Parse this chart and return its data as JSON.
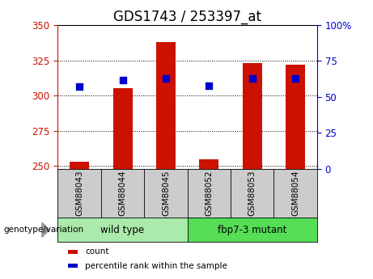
{
  "title": "GDS1743 / 253397_at",
  "samples": [
    "GSM88043",
    "GSM88044",
    "GSM88045",
    "GSM88052",
    "GSM88053",
    "GSM88054"
  ],
  "count_values": [
    253,
    305,
    338,
    255,
    323,
    322
  ],
  "percentile_values": [
    57,
    62,
    63,
    58,
    63,
    63
  ],
  "ylim_left": [
    248,
    350
  ],
  "ylim_right": [
    0,
    100
  ],
  "yticks_left": [
    250,
    275,
    300,
    325,
    350
  ],
  "yticks_right": [
    0,
    25,
    50,
    75,
    100
  ],
  "bar_baseline": 248,
  "bar_color": "#cc1100",
  "dot_color": "#0000cc",
  "group1_label": "wild type",
  "group2_label": "fbp7-3 mutant",
  "group1_color": "#aaeaaa",
  "group2_color": "#55dd55",
  "xlabel_label": "genotype/variation",
  "legend_count": "count",
  "legend_percentile": "percentile rank within the sample",
  "bar_width": 0.45,
  "dot_size": 40,
  "title_fontsize": 12,
  "tick_fontsize": 8.5,
  "sample_box_color": "#cccccc"
}
